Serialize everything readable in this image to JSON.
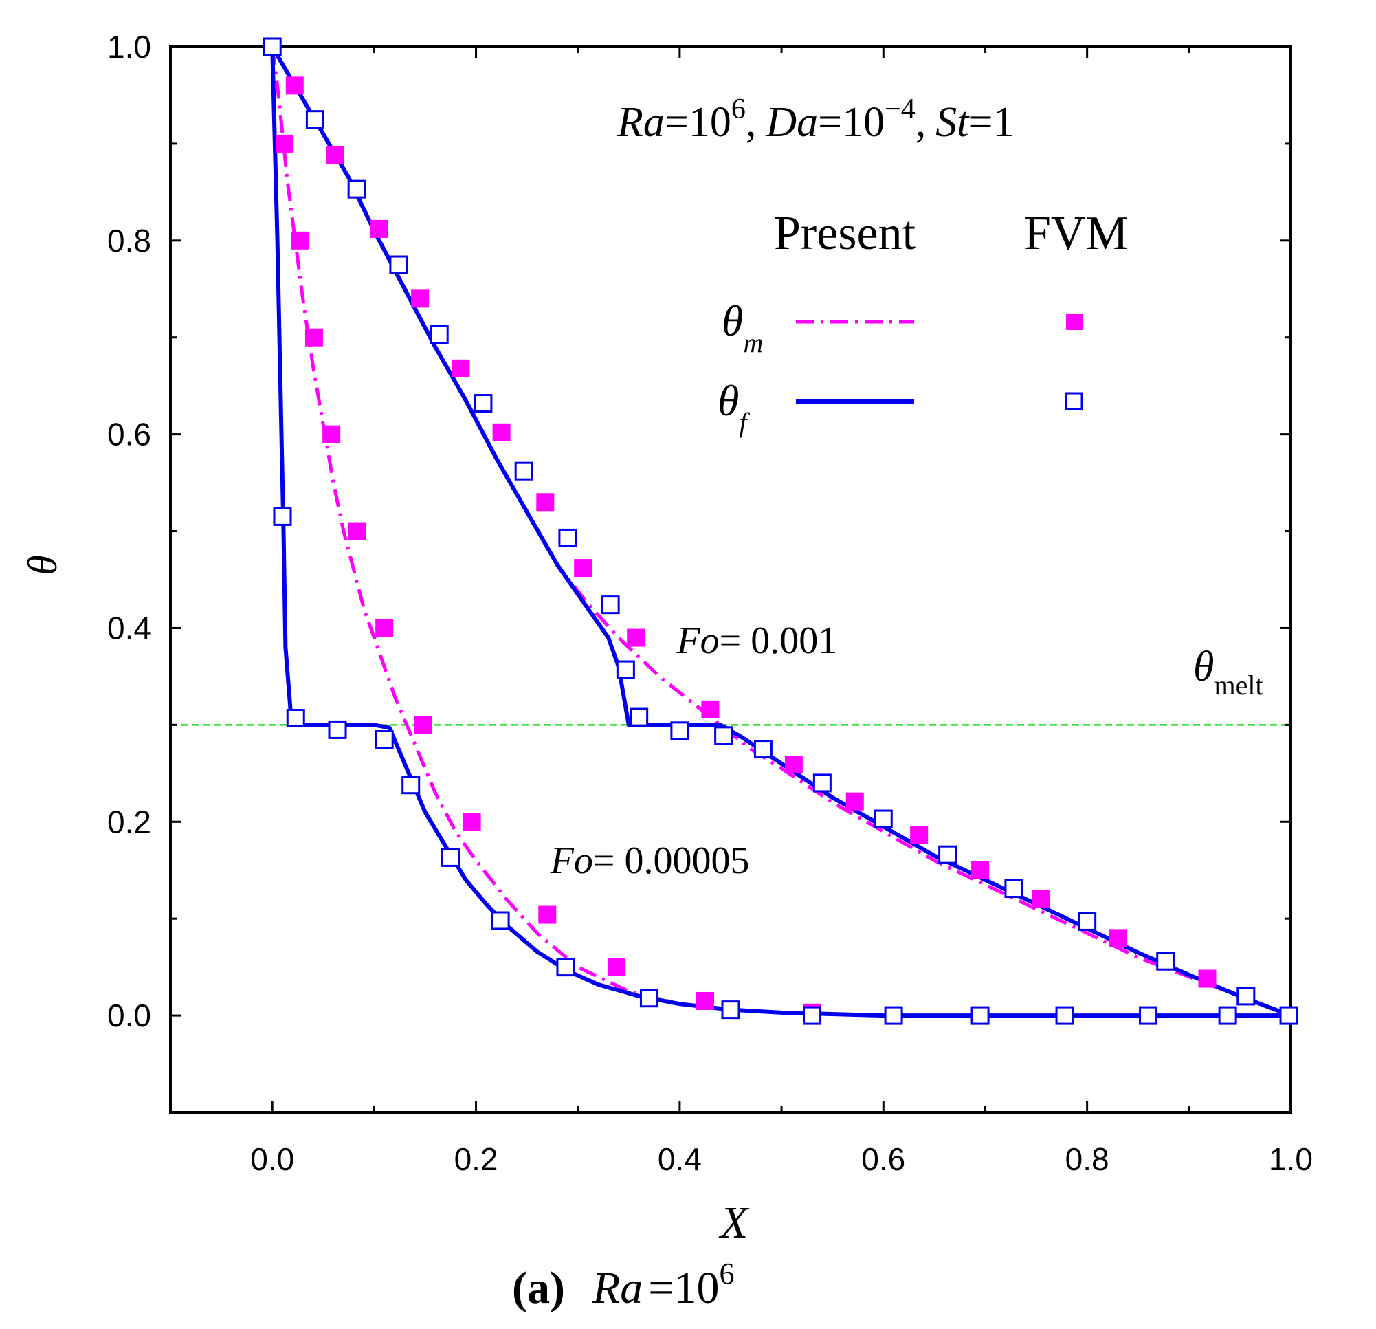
{
  "chart_data": {
    "type": "line",
    "title": "Ra =10^6, Da =10^-4, St =1",
    "annotation": {
      "ra_label": "Ra",
      "ra_value": "=10",
      "ra_exp": "6",
      "da_label": "Da",
      "da_value": "=10",
      "da_exp": "−4",
      "st_label": "St",
      "st_value": "=1",
      "comma": ","
    },
    "xlabel": "X",
    "ylabel": "θ",
    "xlim": [
      -0.1,
      1.0
    ],
    "ylim": [
      -0.1,
      1.0
    ],
    "xticks": [
      "0.0",
      "0.2",
      "0.4",
      "0.6",
      "0.8",
      "1.0"
    ],
    "yticks": [
      "0.0",
      "0.2",
      "0.4",
      "0.6",
      "0.8",
      "1.0"
    ],
    "xtick_values": [
      0.0,
      0.2,
      0.4,
      0.6,
      0.8,
      1.0
    ],
    "ytick_values": [
      0.0,
      0.2,
      0.4,
      0.6,
      0.8,
      1.0
    ],
    "legend": {
      "header_present": "Present",
      "header_fvm": "FVM",
      "theta_symbol": "θ",
      "m_subscript": "m",
      "f_subscript": "f"
    },
    "melt_line": {
      "value": 0.3,
      "label_symbol": "θ",
      "label_sub": "melt",
      "color": "#22dd22"
    },
    "fo_labels": [
      {
        "fo": "Fo",
        "value": "= 0.001",
        "x": 0.397,
        "y": 0.374
      },
      {
        "fo": "Fo",
        "value": "= 0.00005",
        "x": 0.273,
        "y": 0.147
      }
    ],
    "caption": {
      "letter": "(a)",
      "ra": "Ra",
      "eq": "=10",
      "exp": "6"
    },
    "colors": {
      "m": "#ff00ff",
      "f": "#0000ee"
    },
    "series": [
      {
        "name": "theta_m Present Fo=0.00005",
        "style": "dashdot",
        "color": "#ff00ff",
        "x": [
          0.0,
          0.005,
          0.01,
          0.015,
          0.02,
          0.03,
          0.04,
          0.05,
          0.06,
          0.07,
          0.08,
          0.09,
          0.1,
          0.12,
          0.14,
          0.16,
          0.18,
          0.2,
          0.23,
          0.26,
          0.3,
          0.35,
          0.4,
          0.45,
          0.5,
          0.6,
          0.7,
          0.8,
          0.9,
          1.0
        ],
        "y": [
          1.0,
          0.96,
          0.91,
          0.86,
          0.82,
          0.74,
          0.67,
          0.61,
          0.55,
          0.5,
          0.46,
          0.42,
          0.39,
          0.33,
          0.28,
          0.23,
          0.19,
          0.16,
          0.12,
          0.085,
          0.05,
          0.025,
          0.012,
          0.006,
          0.003,
          0.0,
          0.0,
          0.0,
          0.0,
          0.0
        ]
      },
      {
        "name": "theta_f Present Fo=0.00005",
        "style": "solid",
        "color": "#0000ee",
        "x": [
          0.0,
          0.005,
          0.009,
          0.011,
          0.013,
          0.016,
          0.019,
          0.04,
          0.07,
          0.1,
          0.115,
          0.13,
          0.15,
          0.17,
          0.19,
          0.21,
          0.23,
          0.26,
          0.29,
          0.32,
          0.36,
          0.4,
          0.45,
          0.5,
          0.6,
          0.7,
          0.8,
          0.9,
          1.0
        ],
        "y": [
          1.0,
          0.8,
          0.6,
          0.5,
          0.38,
          0.34,
          0.3,
          0.3,
          0.3,
          0.3,
          0.297,
          0.26,
          0.21,
          0.175,
          0.14,
          0.115,
          0.093,
          0.066,
          0.046,
          0.032,
          0.02,
          0.012,
          0.006,
          0.003,
          0.0,
          0.0,
          0.0,
          0.0,
          0.0
        ]
      },
      {
        "name": "theta_m Present Fo=0.001",
        "style": "dashdot",
        "color": "#ff00ff",
        "x": [
          0.0,
          0.025,
          0.05,
          0.075,
          0.1,
          0.13,
          0.16,
          0.19,
          0.22,
          0.25,
          0.28,
          0.31,
          0.34,
          0.36,
          0.38,
          0.41,
          0.44,
          0.47,
          0.5,
          0.55,
          0.6,
          0.65,
          0.7,
          0.75,
          0.8,
          0.85,
          0.9,
          0.95,
          1.0
        ],
        "y": [
          1.0,
          0.955,
          0.91,
          0.865,
          0.81,
          0.75,
          0.69,
          0.635,
          0.575,
          0.52,
          0.465,
          0.425,
          0.39,
          0.37,
          0.35,
          0.325,
          0.3,
          0.275,
          0.255,
          0.22,
          0.19,
          0.16,
          0.135,
          0.11,
          0.085,
          0.06,
          0.04,
          0.02,
          0.0
        ]
      },
      {
        "name": "theta_f Present Fo=0.001",
        "style": "solid",
        "color": "#0000ee",
        "x": [
          0.0,
          0.025,
          0.05,
          0.075,
          0.1,
          0.13,
          0.16,
          0.19,
          0.22,
          0.25,
          0.28,
          0.31,
          0.33,
          0.34,
          0.345,
          0.35,
          0.355,
          0.4,
          0.44,
          0.46,
          0.5,
          0.55,
          0.6,
          0.65,
          0.7,
          0.75,
          0.8,
          0.85,
          0.9,
          0.95,
          1.0
        ],
        "y": [
          1.0,
          0.955,
          0.91,
          0.865,
          0.81,
          0.75,
          0.69,
          0.635,
          0.575,
          0.52,
          0.465,
          0.42,
          0.39,
          0.36,
          0.33,
          0.3,
          0.3,
          0.3,
          0.3,
          0.288,
          0.26,
          0.225,
          0.195,
          0.165,
          0.14,
          0.115,
          0.09,
          0.065,
          0.042,
          0.02,
          0.0
        ]
      },
      {
        "name": "theta_m FVM Fo=0.00005",
        "style": "filled-square",
        "color": "#ff00ff",
        "x": [
          0.012,
          0.027,
          0.041,
          0.058,
          0.083,
          0.11,
          0.148,
          0.196,
          0.27,
          0.338,
          0.425,
          0.53,
          0.61
        ],
        "y": [
          0.9,
          0.8,
          0.7,
          0.6,
          0.5,
          0.4,
          0.3,
          0.2,
          0.104,
          0.05,
          0.015,
          0.003,
          0.0
        ]
      },
      {
        "name": "theta_f FVM Fo=0.00005",
        "style": "open-square",
        "color": "#0000ee",
        "x": [
          0.01,
          0.023,
          0.064,
          0.11,
          0.136,
          0.175,
          0.224,
          0.288,
          0.37,
          0.45,
          0.53,
          0.61,
          0.695,
          0.778,
          0.86,
          0.938
        ],
        "y": [
          0.515,
          0.307,
          0.295,
          0.285,
          0.238,
          0.163,
          0.098,
          0.05,
          0.018,
          0.006,
          0.0,
          0.0,
          0.0,
          0.0,
          0.0,
          0.0
        ]
      },
      {
        "name": "theta_m FVM Fo=0.001",
        "style": "filled-square",
        "color": "#ff00ff",
        "x": [
          0.022,
          0.062,
          0.105,
          0.145,
          0.185,
          0.225,
          0.268,
          0.305,
          0.357,
          0.43,
          0.512,
          0.572,
          0.635,
          0.695,
          0.755,
          0.83,
          0.918
        ],
        "y": [
          0.96,
          0.888,
          0.812,
          0.74,
          0.668,
          0.602,
          0.53,
          0.462,
          0.39,
          0.316,
          0.259,
          0.221,
          0.186,
          0.15,
          0.12,
          0.08,
          0.038
        ]
      },
      {
        "name": "theta_f FVM Fo=0.001",
        "style": "open-square",
        "color": "#0000ee",
        "x": [
          0.0,
          0.042,
          0.083,
          0.124,
          0.164,
          0.207,
          0.247,
          0.29,
          0.332,
          0.347,
          0.36,
          0.4,
          0.443,
          0.482,
          0.54,
          0.6,
          0.663,
          0.728,
          0.8,
          0.877,
          0.956,
          0.998
        ],
        "y": [
          1.0,
          0.925,
          0.853,
          0.775,
          0.703,
          0.632,
          0.562,
          0.493,
          0.424,
          0.357,
          0.308,
          0.294,
          0.289,
          0.275,
          0.24,
          0.203,
          0.166,
          0.131,
          0.097,
          0.056,
          0.02,
          0.0
        ]
      }
    ]
  }
}
